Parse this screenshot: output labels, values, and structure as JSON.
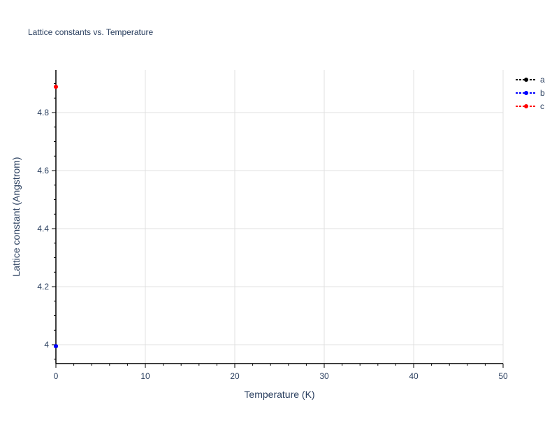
{
  "chart_data": {
    "type": "scatter",
    "title": "Lattice constants vs. Temperature",
    "xlabel": "Temperature (K)",
    "ylabel": "Lattice constant (Angstrom)",
    "xlim": [
      0,
      50
    ],
    "ylim": [
      3.935,
      4.947
    ],
    "xticks": [
      0,
      10,
      20,
      30,
      40,
      50
    ],
    "xtick_labels": [
      "0",
      "10",
      "20",
      "30",
      "40",
      "50"
    ],
    "yticks": [
      4,
      4.2,
      4.4,
      4.6,
      4.8
    ],
    "ytick_labels": [
      "4",
      "4.2",
      "4.4",
      "4.6",
      "4.8"
    ],
    "grid": true,
    "legend": "top-right",
    "series": [
      {
        "name": "a",
        "color": "#000000",
        "x": [
          0
        ],
        "y": [
          3.995
        ]
      },
      {
        "name": "b",
        "color": "#0000ff",
        "x": [
          0
        ],
        "y": [
          3.995
        ]
      },
      {
        "name": "c",
        "color": "#ff0000",
        "x": [
          0
        ],
        "y": [
          4.889
        ]
      }
    ]
  }
}
